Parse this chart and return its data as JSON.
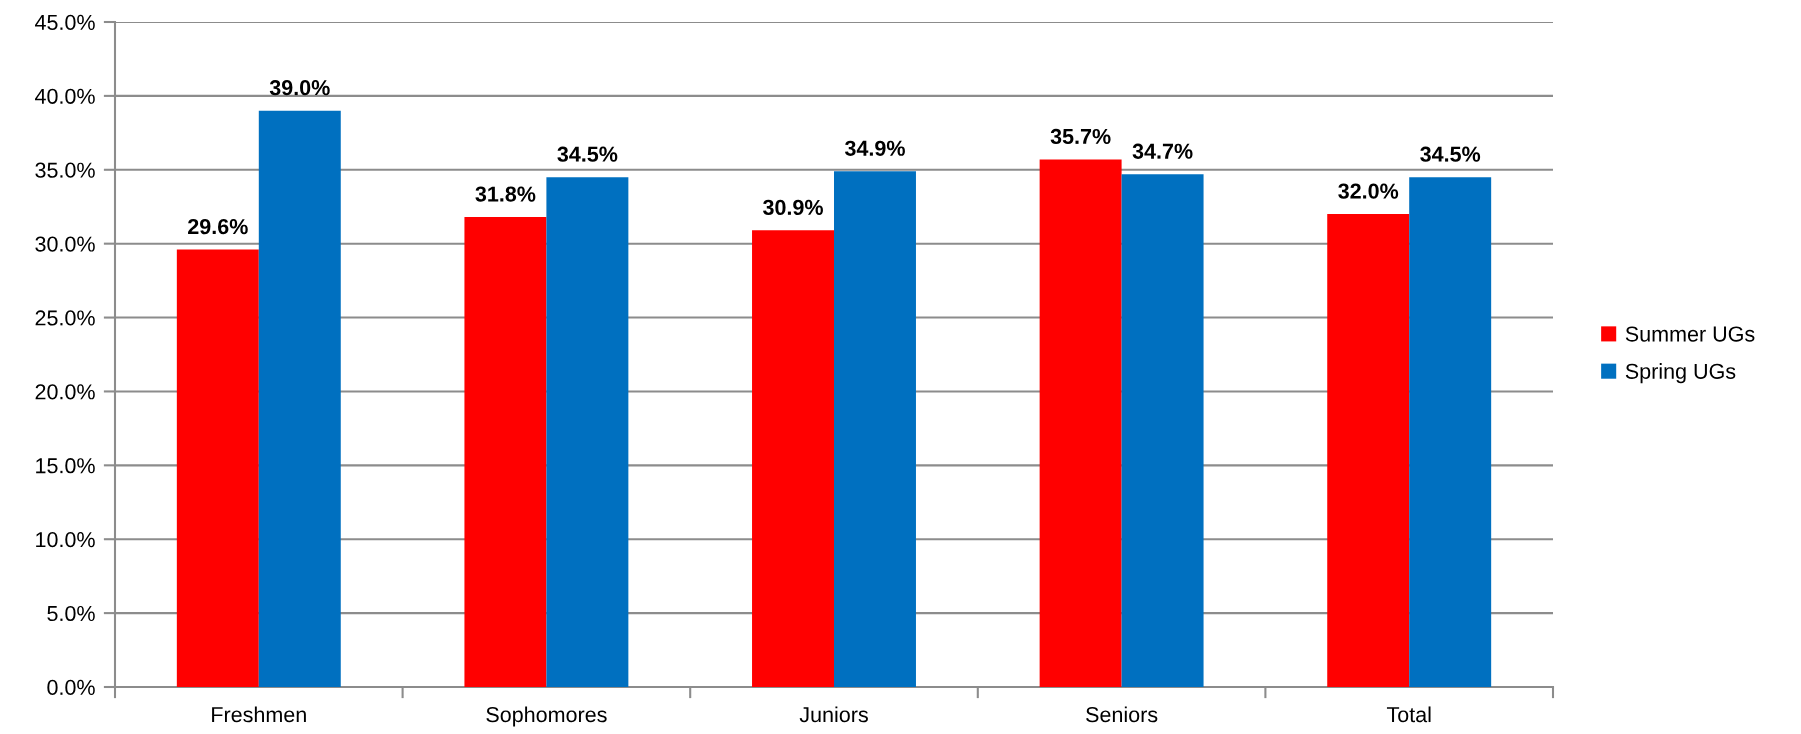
{
  "chart_data": {
    "type": "bar",
    "categories": [
      "Freshmen",
      "Sophomores",
      "Juniors",
      "Seniors",
      "Total"
    ],
    "series": [
      {
        "name": "Summer UGs",
        "color": "#ff0000",
        "values": [
          29.6,
          31.8,
          30.9,
          35.7,
          32.0
        ],
        "value_labels": [
          "29.6%",
          "31.8%",
          "30.9%",
          "35.7%",
          "32.0%"
        ]
      },
      {
        "name": "Spring UGs",
        "color": "#0070c0",
        "values": [
          39.0,
          34.5,
          34.9,
          34.7,
          34.5
        ],
        "value_labels": [
          "39.0%",
          "34.5%",
          "34.9%",
          "34.7%",
          "34.5%"
        ]
      }
    ],
    "ylim": [
      0,
      45
    ],
    "yticks": [
      {
        "value": 0,
        "label": "0.0%"
      },
      {
        "value": 5,
        "label": "5.0%"
      },
      {
        "value": 10,
        "label": "10.0%"
      },
      {
        "value": 15,
        "label": "15.0%"
      },
      {
        "value": 20,
        "label": "20.0%"
      },
      {
        "value": 25,
        "label": "25.0%"
      },
      {
        "value": 30,
        "label": "30.0%"
      },
      {
        "value": 35,
        "label": "35.0%"
      },
      {
        "value": 40,
        "label": "40.0%"
      },
      {
        "value": 45,
        "label": "45.0%"
      }
    ],
    "grid": "y",
    "legend": "right"
  }
}
